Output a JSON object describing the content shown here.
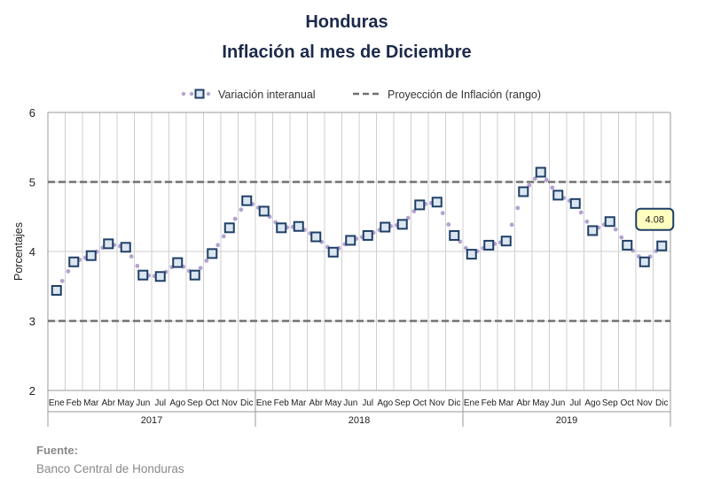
{
  "source": {
    "label": "Fuente:",
    "value": "Banco Central de Honduras"
  },
  "chart_data": {
    "type": "line",
    "title": "Honduras",
    "subtitle": "Inflación al mes de Diciembre",
    "xlabel": "",
    "ylabel": "Porcentajes",
    "ylim": [
      2,
      6
    ],
    "yticks": [
      2,
      3,
      4,
      5,
      6
    ],
    "grid": true,
    "legend_position": "top",
    "years": [
      "2017",
      "2018",
      "2019"
    ],
    "months": [
      "Ene",
      "Feb",
      "Mar",
      "Abr",
      "May",
      "Jun",
      "Jul",
      "Ago",
      "Sep",
      "Oct",
      "Nov",
      "Dic"
    ],
    "series": [
      {
        "name": "Variación interanual",
        "marker_color": "#1f3f66",
        "marker_fill": "#dbe6f1",
        "dot_color": "#b3a3d1",
        "values": [
          3.44,
          3.85,
          3.94,
          4.11,
          4.06,
          3.66,
          3.64,
          3.84,
          3.66,
          3.97,
          4.34,
          4.73,
          4.58,
          4.34,
          4.36,
          4.21,
          3.99,
          4.16,
          4.23,
          4.35,
          4.39,
          4.67,
          4.71,
          4.23,
          3.96,
          4.09,
          4.15,
          4.86,
          5.14,
          4.81,
          4.69,
          4.3,
          4.43,
          4.09,
          3.85,
          4.08
        ]
      },
      {
        "name": "Proyección de Inflación (rango)",
        "color": "#707070",
        "lower": 3,
        "upper": 5
      }
    ],
    "annotation": {
      "text": "4.08",
      "point_index": 35,
      "fill": "#ffffbf",
      "border": "#1f3f66"
    }
  }
}
